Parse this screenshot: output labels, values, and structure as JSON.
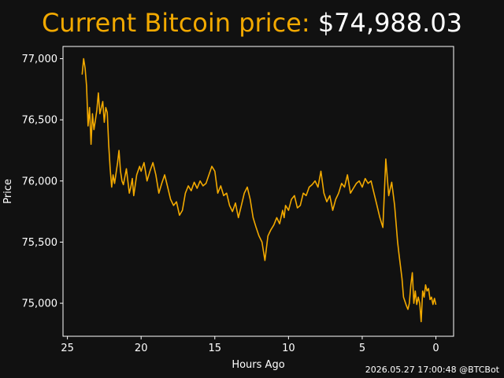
{
  "header": {
    "label": "Current Bitcoin price:",
    "price": "$74,988.03"
  },
  "footer": {
    "timestamp": "2026.05.27 17:00:48 @BTCBot"
  },
  "colors": {
    "background": "#111111",
    "line": "#f2a900",
    "text": "#ffffff"
  },
  "chart_data": {
    "type": "line",
    "xlabel": "Hours Ago",
    "ylabel": "Price",
    "x_reversed": true,
    "xlim": [
      25.3,
      -1.2
    ],
    "ylim": [
      74730,
      77100
    ],
    "x_ticks": [
      25,
      20,
      15,
      10,
      5,
      0
    ],
    "y_ticks": [
      75000,
      75500,
      76000,
      76500,
      77000
    ],
    "y_tick_labels": [
      "75,000",
      "75,500",
      "76,000",
      "76,500",
      "77,000"
    ],
    "grid": false,
    "legend": "none",
    "series": [
      {
        "x": [
          24.0,
          23.9,
          23.8,
          23.7,
          23.6,
          23.5,
          23.4,
          23.3,
          23.2,
          23.1,
          23.0,
          22.9,
          22.8,
          22.6,
          22.5,
          22.4,
          22.3,
          22.2,
          22.1,
          22.0,
          21.9,
          21.8,
          21.6,
          21.5,
          21.4,
          21.3,
          21.2,
          21.0,
          20.8,
          20.7,
          20.6,
          20.5,
          20.3,
          20.1,
          20.0,
          19.8,
          19.6,
          19.4,
          19.2,
          19.0,
          18.8,
          18.6,
          18.4,
          18.2,
          18.0,
          17.8,
          17.6,
          17.4,
          17.2,
          17.0,
          16.8,
          16.6,
          16.4,
          16.2,
          16.0,
          15.8,
          15.6,
          15.4,
          15.2,
          15.0,
          14.8,
          14.6,
          14.4,
          14.2,
          14.0,
          13.8,
          13.6,
          13.4,
          13.2,
          13.0,
          12.8,
          12.6,
          12.4,
          12.2,
          12.0,
          11.8,
          11.6,
          11.4,
          11.2,
          11.0,
          10.8,
          10.6,
          10.4,
          10.3,
          10.2,
          10.0,
          9.8,
          9.6,
          9.4,
          9.2,
          9.0,
          8.8,
          8.6,
          8.4,
          8.2,
          8.0,
          7.8,
          7.6,
          7.4,
          7.2,
          7.0,
          6.8,
          6.6,
          6.4,
          6.2,
          6.0,
          5.8,
          5.6,
          5.4,
          5.2,
          5.0,
          4.8,
          4.6,
          4.4,
          4.2,
          4.0,
          3.8,
          3.6,
          3.4,
          3.2,
          3.0,
          2.8,
          2.7,
          2.6,
          2.5,
          2.4,
          2.3,
          2.2,
          2.0,
          1.9,
          1.8,
          1.7,
          1.6,
          1.5,
          1.4,
          1.3,
          1.2,
          1.1,
          1.0,
          0.9,
          0.8,
          0.7,
          0.6,
          0.5,
          0.4,
          0.3,
          0.2,
          0.1,
          0.0
        ],
        "y": [
          76870,
          77000,
          76920,
          76780,
          76450,
          76600,
          76300,
          76550,
          76420,
          76500,
          76580,
          76720,
          76550,
          76650,
          76480,
          76600,
          76560,
          76300,
          76100,
          75950,
          76050,
          75980,
          76150,
          76250,
          76080,
          76000,
          75970,
          76100,
          75900,
          75950,
          76020,
          75880,
          76050,
          76120,
          76080,
          76150,
          76000,
          76080,
          76150,
          76050,
          75900,
          75980,
          76050,
          75950,
          75850,
          75800,
          75830,
          75720,
          75760,
          75900,
          75960,
          75920,
          75990,
          75940,
          76000,
          75960,
          75980,
          76050,
          76120,
          76080,
          75900,
          75960,
          75880,
          75900,
          75800,
          75750,
          75820,
          75700,
          75800,
          75900,
          75950,
          75850,
          75700,
          75620,
          75550,
          75500,
          75350,
          75550,
          75600,
          75640,
          75700,
          75650,
          75760,
          75700,
          75800,
          75760,
          75850,
          75880,
          75780,
          75800,
          75900,
          75880,
          75950,
          75970,
          76000,
          75950,
          76080,
          75900,
          75830,
          75880,
          75760,
          75850,
          75900,
          75980,
          75950,
          76050,
          75900,
          75940,
          75980,
          76000,
          75950,
          76020,
          75980,
          76000,
          75900,
          75800,
          75700,
          75620,
          76180,
          75880,
          75990,
          75800,
          75650,
          75500,
          75400,
          75300,
          75200,
          75050,
          74980,
          74950,
          75000,
          75150,
          75250,
          75000,
          75100,
          74990,
          75050,
          75000,
          74850,
          75100,
          75050,
          75150,
          75100,
          75120,
          75030,
          75050,
          74990,
          75040,
          74988
        ]
      }
    ]
  }
}
